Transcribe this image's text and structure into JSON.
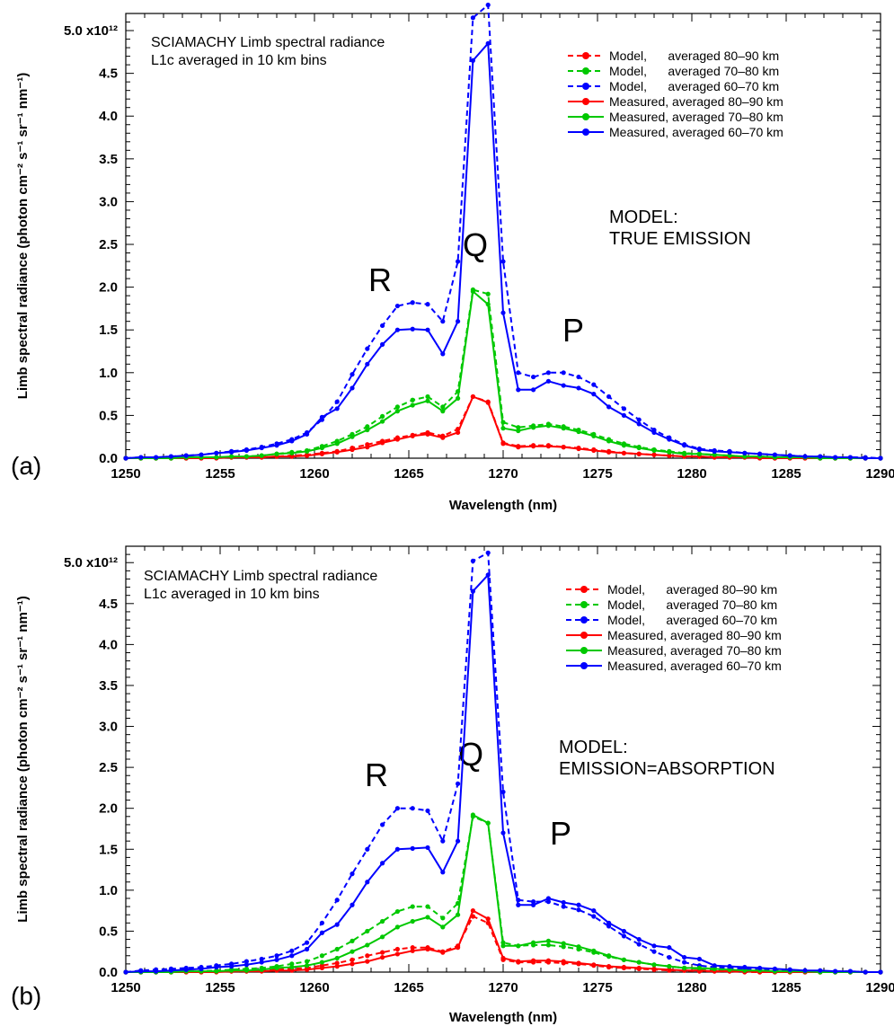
{
  "chart_data": [
    {
      "type": "line",
      "panel_label": "(a)",
      "note_line1": "SCIAMACHY Limb spectral radiance",
      "note_line2": "L1c averaged in 10 km bins",
      "model_title_line1": "MODEL:",
      "model_title_line2": "TRUE EMISSION",
      "branch_labels": {
        "R": "R",
        "Q": "Q",
        "P": "P"
      },
      "xlabel": "Wavelength (nm)",
      "ylabel": "Limb spectral radiance (photon cm⁻² s⁻¹ sr⁻¹ nm⁻¹)",
      "xlim": [
        1250,
        1290
      ],
      "ylim": [
        0,
        5.2
      ],
      "x_ticks": [
        "1250",
        "1255",
        "1260",
        "1265",
        "1270",
        "1275",
        "1280",
        "1285",
        "1290"
      ],
      "y_ticks": [
        "0.0",
        "0.5",
        "1.0",
        "1.5",
        "2.0",
        "2.5",
        "3.0",
        "3.5",
        "4.0",
        "4.5",
        "5.0 x10¹²"
      ],
      "legend_position": "top-right",
      "x": [
        1250.0,
        1250.8,
        1251.6,
        1252.4,
        1253.2,
        1254.0,
        1254.8,
        1255.6,
        1256.4,
        1257.2,
        1258.0,
        1258.8,
        1259.6,
        1260.4,
        1261.2,
        1262.0,
        1262.8,
        1263.6,
        1264.4,
        1265.2,
        1266.0,
        1266.8,
        1267.6,
        1268.4,
        1269.2,
        1270.0,
        1270.8,
        1271.6,
        1272.4,
        1273.2,
        1274.0,
        1274.8,
        1275.6,
        1276.4,
        1277.2,
        1278.0,
        1278.8,
        1279.6,
        1280.4,
        1281.2,
        1282.0,
        1282.8,
        1283.6,
        1284.4,
        1285.2,
        1286.0,
        1286.8,
        1287.6,
        1288.4,
        1289.2,
        1290.0
      ],
      "series": [
        {
          "name": "Model,      averaged 80–90 km",
          "color": "#ff0000",
          "dash": true,
          "values": [
            0.0,
            0.0,
            0.0,
            0.0,
            0.0,
            0.0,
            0.01,
            0.01,
            0.01,
            0.01,
            0.02,
            0.03,
            0.04,
            0.06,
            0.08,
            0.12,
            0.16,
            0.2,
            0.24,
            0.27,
            0.3,
            0.26,
            0.34,
            0.72,
            0.66,
            0.18,
            0.14,
            0.15,
            0.15,
            0.13,
            0.12,
            0.1,
            0.08,
            0.06,
            0.05,
            0.04,
            0.03,
            0.02,
            0.02,
            0.01,
            0.01,
            0.01,
            0.01,
            0.0,
            0.0,
            0.0,
            0.0,
            0.0,
            0.0,
            0.0,
            0.0
          ]
        },
        {
          "name": "Model,      averaged 70–80 km",
          "color": "#00c800",
          "dash": true,
          "values": [
            0.0,
            0.0,
            0.0,
            0.0,
            0.0,
            0.01,
            0.01,
            0.01,
            0.02,
            0.03,
            0.05,
            0.07,
            0.09,
            0.14,
            0.2,
            0.28,
            0.37,
            0.49,
            0.6,
            0.68,
            0.72,
            0.6,
            0.78,
            1.97,
            1.92,
            0.42,
            0.36,
            0.38,
            0.4,
            0.37,
            0.33,
            0.28,
            0.22,
            0.17,
            0.13,
            0.1,
            0.08,
            0.06,
            0.05,
            0.04,
            0.03,
            0.02,
            0.02,
            0.01,
            0.01,
            0.01,
            0.0,
            0.0,
            0.0,
            0.0,
            0.0
          ]
        },
        {
          "name": "Model,      averaged 60–70 km",
          "color": "#0000ff",
          "dash": true,
          "values": [
            0.0,
            0.01,
            0.01,
            0.02,
            0.03,
            0.04,
            0.06,
            0.08,
            0.1,
            0.13,
            0.17,
            0.22,
            0.3,
            0.45,
            0.66,
            0.98,
            1.28,
            1.55,
            1.78,
            1.82,
            1.8,
            1.6,
            2.3,
            5.15,
            5.3,
            2.3,
            1.0,
            0.95,
            1.0,
            1.0,
            0.95,
            0.86,
            0.72,
            0.58,
            0.45,
            0.33,
            0.24,
            0.16,
            0.11,
            0.09,
            0.08,
            0.06,
            0.05,
            0.04,
            0.03,
            0.02,
            0.02,
            0.01,
            0.01,
            0.01,
            0.0
          ]
        },
        {
          "name": "Measured, averaged 80–90 km",
          "color": "#ff0000",
          "dash": false,
          "values": [
            0.0,
            0.0,
            0.0,
            0.0,
            0.0,
            0.0,
            0.0,
            0.01,
            0.01,
            0.01,
            0.02,
            0.02,
            0.03,
            0.05,
            0.07,
            0.1,
            0.13,
            0.18,
            0.22,
            0.26,
            0.28,
            0.24,
            0.3,
            0.72,
            0.65,
            0.17,
            0.13,
            0.14,
            0.14,
            0.13,
            0.11,
            0.09,
            0.07,
            0.06,
            0.05,
            0.04,
            0.03,
            0.02,
            0.02,
            0.01,
            0.01,
            0.01,
            0.0,
            0.0,
            0.0,
            0.0,
            0.0,
            0.0,
            0.0,
            0.0,
            0.0
          ]
        },
        {
          "name": "Measured, averaged 70–80 km",
          "color": "#00c800",
          "dash": false,
          "values": [
            0.0,
            0.0,
            0.0,
            0.0,
            0.01,
            0.01,
            0.01,
            0.02,
            0.02,
            0.03,
            0.05,
            0.06,
            0.08,
            0.12,
            0.17,
            0.25,
            0.33,
            0.43,
            0.55,
            0.62,
            0.67,
            0.55,
            0.7,
            1.95,
            1.8,
            0.35,
            0.32,
            0.36,
            0.38,
            0.35,
            0.31,
            0.26,
            0.2,
            0.15,
            0.12,
            0.09,
            0.07,
            0.05,
            0.05,
            0.04,
            0.03,
            0.02,
            0.02,
            0.01,
            0.01,
            0.01,
            0.0,
            0.0,
            0.0,
            0.0,
            0.0
          ]
        },
        {
          "name": "Measured, averaged 60–70 km",
          "color": "#0000ff",
          "dash": false,
          "values": [
            0.0,
            0.01,
            0.01,
            0.02,
            0.03,
            0.04,
            0.06,
            0.07,
            0.09,
            0.12,
            0.15,
            0.2,
            0.28,
            0.48,
            0.58,
            0.82,
            1.1,
            1.33,
            1.5,
            1.51,
            1.5,
            1.22,
            1.6,
            4.65,
            4.85,
            1.7,
            0.8,
            0.8,
            0.9,
            0.85,
            0.82,
            0.75,
            0.6,
            0.5,
            0.4,
            0.3,
            0.22,
            0.15,
            0.1,
            0.08,
            0.07,
            0.06,
            0.05,
            0.04,
            0.03,
            0.02,
            0.02,
            0.01,
            0.01,
            0.0,
            0.0
          ]
        }
      ]
    },
    {
      "type": "line",
      "panel_label": "(b)",
      "note_line1": "SCIAMACHY Limb spectral radiance",
      "note_line2": "L1c averaged in 10 km bins",
      "model_title_line1": "MODEL:",
      "model_title_line2": "EMISSION=ABSORPTION",
      "branch_labels": {
        "R": "R",
        "Q": "Q",
        "P": "P"
      },
      "xlabel": "Wavelength (nm)",
      "ylabel": "Limb spectral radiance (photon cm⁻² s⁻¹ sr⁻¹ nm⁻¹)",
      "xlim": [
        1250,
        1290
      ],
      "ylim": [
        0,
        5.2
      ],
      "x_ticks": [
        "1250",
        "1255",
        "1260",
        "1265",
        "1270",
        "1275",
        "1280",
        "1285",
        "1290"
      ],
      "y_ticks": [
        "0.0",
        "0.5",
        "1.0",
        "1.5",
        "2.0",
        "2.5",
        "3.0",
        "3.5",
        "4.0",
        "4.5",
        "5.0 x10¹²"
      ],
      "legend_position": "top-right",
      "x": [
        1250.0,
        1250.8,
        1251.6,
        1252.4,
        1253.2,
        1254.0,
        1254.8,
        1255.6,
        1256.4,
        1257.2,
        1258.0,
        1258.8,
        1259.6,
        1260.4,
        1261.2,
        1262.0,
        1262.8,
        1263.6,
        1264.4,
        1265.2,
        1266.0,
        1266.8,
        1267.6,
        1268.4,
        1269.2,
        1270.0,
        1270.8,
        1271.6,
        1272.4,
        1273.2,
        1274.0,
        1274.8,
        1275.6,
        1276.4,
        1277.2,
        1278.0,
        1278.8,
        1279.6,
        1280.4,
        1281.2,
        1282.0,
        1282.8,
        1283.6,
        1284.4,
        1285.2,
        1286.0,
        1286.8,
        1287.6,
        1288.4,
        1289.2,
        1290.0
      ],
      "series": [
        {
          "name": "Model,      averaged 80–90 km",
          "color": "#ff0000",
          "dash": true,
          "values": [
            0.0,
            0.0,
            0.0,
            0.0,
            0.0,
            0.0,
            0.01,
            0.01,
            0.01,
            0.02,
            0.03,
            0.04,
            0.05,
            0.08,
            0.11,
            0.15,
            0.2,
            0.24,
            0.28,
            0.3,
            0.3,
            0.25,
            0.32,
            0.68,
            0.6,
            0.15,
            0.12,
            0.12,
            0.12,
            0.11,
            0.1,
            0.08,
            0.06,
            0.05,
            0.04,
            0.03,
            0.02,
            0.02,
            0.01,
            0.01,
            0.01,
            0.0,
            0.0,
            0.0,
            0.0,
            0.0,
            0.0,
            0.0,
            0.0,
            0.0,
            0.0
          ]
        },
        {
          "name": "Model,      averaged 70–80 km",
          "color": "#00c800",
          "dash": true,
          "values": [
            0.0,
            0.0,
            0.0,
            0.01,
            0.01,
            0.01,
            0.02,
            0.03,
            0.04,
            0.05,
            0.07,
            0.1,
            0.13,
            0.2,
            0.28,
            0.38,
            0.5,
            0.62,
            0.74,
            0.8,
            0.8,
            0.66,
            0.84,
            1.9,
            1.82,
            0.36,
            0.32,
            0.33,
            0.33,
            0.31,
            0.28,
            0.24,
            0.19,
            0.15,
            0.12,
            0.09,
            0.07,
            0.05,
            0.04,
            0.03,
            0.02,
            0.02,
            0.01,
            0.01,
            0.01,
            0.0,
            0.0,
            0.0,
            0.0,
            0.0,
            0.0
          ]
        },
        {
          "name": "Model,      averaged 60–70 km",
          "color": "#0000ff",
          "dash": true,
          "values": [
            0.0,
            0.02,
            0.03,
            0.04,
            0.05,
            0.06,
            0.08,
            0.1,
            0.13,
            0.16,
            0.2,
            0.26,
            0.36,
            0.6,
            0.88,
            1.2,
            1.5,
            1.8,
            2.0,
            2.0,
            1.97,
            1.6,
            2.3,
            5.02,
            5.12,
            2.2,
            0.88,
            0.86,
            0.86,
            0.8,
            0.76,
            0.68,
            0.56,
            0.44,
            0.34,
            0.25,
            0.18,
            0.12,
            0.08,
            0.06,
            0.05,
            0.04,
            0.03,
            0.02,
            0.02,
            0.01,
            0.01,
            0.01,
            0.01,
            0.0,
            0.0
          ]
        },
        {
          "name": "Measured, averaged 80–90 km",
          "color": "#ff0000",
          "dash": false,
          "values": [
            0.0,
            0.0,
            0.0,
            0.0,
            0.0,
            0.0,
            0.0,
            0.01,
            0.01,
            0.01,
            0.02,
            0.02,
            0.03,
            0.05,
            0.07,
            0.1,
            0.13,
            0.18,
            0.22,
            0.26,
            0.28,
            0.24,
            0.3,
            0.75,
            0.65,
            0.17,
            0.13,
            0.14,
            0.14,
            0.13,
            0.11,
            0.09,
            0.07,
            0.06,
            0.05,
            0.04,
            0.03,
            0.02,
            0.02,
            0.01,
            0.01,
            0.01,
            0.0,
            0.0,
            0.0,
            0.0,
            0.0,
            0.0,
            0.0,
            0.0,
            0.0
          ]
        },
        {
          "name": "Measured, averaged 70–80 km",
          "color": "#00c800",
          "dash": false,
          "values": [
            0.0,
            0.0,
            0.0,
            0.0,
            0.01,
            0.01,
            0.01,
            0.02,
            0.02,
            0.03,
            0.05,
            0.06,
            0.08,
            0.12,
            0.17,
            0.25,
            0.33,
            0.43,
            0.55,
            0.62,
            0.67,
            0.55,
            0.7,
            1.92,
            1.82,
            0.32,
            0.32,
            0.36,
            0.38,
            0.35,
            0.31,
            0.26,
            0.2,
            0.15,
            0.12,
            0.09,
            0.07,
            0.05,
            0.05,
            0.04,
            0.03,
            0.02,
            0.02,
            0.01,
            0.01,
            0.01,
            0.0,
            0.0,
            0.0,
            0.0,
            0.0
          ]
        },
        {
          "name": "Measured, averaged 60–70 km",
          "color": "#0000ff",
          "dash": false,
          "values": [
            0.0,
            0.01,
            0.01,
            0.02,
            0.03,
            0.04,
            0.06,
            0.07,
            0.09,
            0.12,
            0.15,
            0.2,
            0.28,
            0.48,
            0.58,
            0.82,
            1.1,
            1.33,
            1.5,
            1.51,
            1.52,
            1.22,
            1.6,
            4.65,
            4.85,
            1.7,
            0.82,
            0.82,
            0.9,
            0.85,
            0.82,
            0.75,
            0.6,
            0.5,
            0.4,
            0.32,
            0.3,
            0.18,
            0.16,
            0.08,
            0.07,
            0.06,
            0.05,
            0.04,
            0.03,
            0.02,
            0.02,
            0.01,
            0.01,
            0.0,
            0.0
          ]
        }
      ]
    }
  ]
}
